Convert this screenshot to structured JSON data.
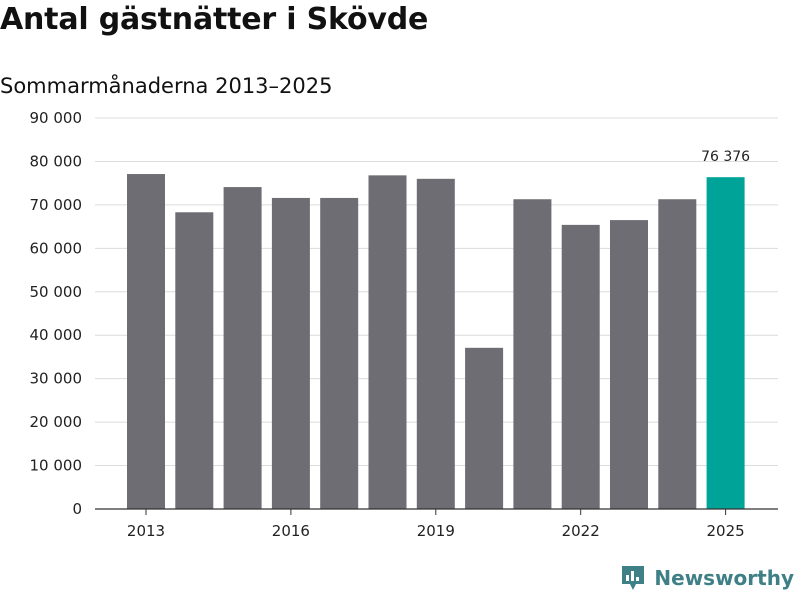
{
  "title": "Antal gästnätter i Skövde",
  "subtitle": "Sommarmånaderna 2013–2025",
  "brand": {
    "name": "Newsworthy",
    "icon": "bar-chart-bubble-icon",
    "color": "#3f7f86"
  },
  "chart_data": {
    "type": "bar",
    "x": [
      2013,
      2014,
      2015,
      2016,
      2017,
      2018,
      2019,
      2020,
      2021,
      2022,
      2023,
      2024,
      2025
    ],
    "x_tick_labels": [
      "2013",
      "2016",
      "2019",
      "2022",
      "2025"
    ],
    "x_tick_values": [
      2013,
      2016,
      2019,
      2022,
      2025
    ],
    "values": [
      77100,
      68300,
      74100,
      71600,
      71600,
      76800,
      76000,
      37100,
      71300,
      65400,
      66500,
      71300,
      76376
    ],
    "highlight": {
      "x": 2025,
      "label": "76 376",
      "color": "#00a398"
    },
    "bar_color": "#6d6d73",
    "ylim": [
      0,
      90000
    ],
    "y_ticks": [
      0,
      10000,
      20000,
      30000,
      40000,
      50000,
      60000,
      70000,
      80000,
      90000
    ],
    "y_tick_labels": [
      "0",
      "10 000",
      "20 000",
      "30 000",
      "40 000",
      "50 000",
      "60 000",
      "70 000",
      "80 000",
      "90 000"
    ],
    "grid": true,
    "xlabel": "",
    "ylabel": ""
  }
}
